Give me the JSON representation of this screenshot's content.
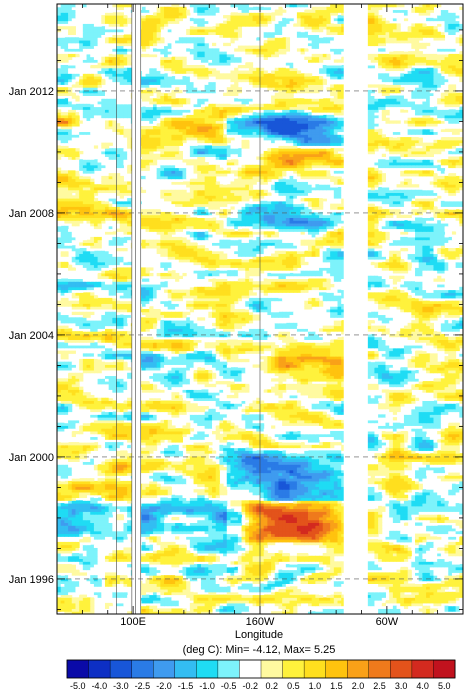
{
  "chart_data": {
    "type": "heatmap",
    "title": "",
    "xlabel": "Longitude",
    "ylabel": "",
    "units_label": "(deg C): Min= -4.12, Max= 5.25",
    "x_ticks": [
      {
        "label": "100E",
        "lon": 100
      },
      {
        "label": "160W",
        "lon": 200
      },
      {
        "label": "60W",
        "lon": 300
      }
    ],
    "y_ticks": [
      {
        "label": "Jan 2012",
        "year": 2012.0
      },
      {
        "label": "Jan 2008",
        "year": 2008.0
      },
      {
        "label": "Jan 2004",
        "year": 2004.0
      },
      {
        "label": "Jan 2000",
        "year": 2000.0
      },
      {
        "label": "Jan 1996",
        "year": 1996.0
      }
    ],
    "xlim": [
      40,
      360
    ],
    "ylim": [
      1994.85,
      2014.85
    ],
    "land_gaps_lon": [
      [
        99,
        106
      ],
      [
        266,
        285
      ]
    ],
    "colorbar": {
      "tick_labels": [
        "-5.0",
        "-4.0",
        "-3.0",
        "-2.5",
        "-2.0",
        "-1.5",
        "-1.0",
        "-0.5",
        "-0.2",
        "0.2",
        "0.5",
        "1.0",
        "1.5",
        "2.0",
        "2.5",
        "3.0",
        "4.0",
        "5.0"
      ],
      "colors": [
        "#0a0aa8",
        "#0d2fc4",
        "#1856d8",
        "#2a7be6",
        "#3f9bef",
        "#33bdf2",
        "#1fdcf4",
        "#7df3fb",
        "#ffffff",
        "#fffaa0",
        "#fff23c",
        "#ffdf1e",
        "#ffc30e",
        "#f9a118",
        "#ef7a1c",
        "#e3531b",
        "#d32a1f",
        "#c1121e"
      ]
    },
    "anomaly_features": [
      {
        "name": "1997-98 El Nino",
        "lon": [
          195,
          262
        ],
        "time": [
          1997.3,
          1998.5
        ],
        "value": 4.5
      },
      {
        "name": "1998-2000 La Nina",
        "lon": [
          175,
          262
        ],
        "time": [
          1998.6,
          2000.2
        ],
        "value": -2.5
      },
      {
        "name": "2002-03 El Nino",
        "lon": [
          195,
          262
        ],
        "time": [
          2002.6,
          2003.2
        ],
        "value": 1.8
      },
      {
        "name": "2009-10 El Nino",
        "lon": [
          195,
          262
        ],
        "time": [
          2009.6,
          2010.0
        ],
        "value": 2.3
      },
      {
        "name": "2010-11 La Nina",
        "lon": [
          180,
          262
        ],
        "time": [
          2010.3,
          2011.3
        ],
        "value": -2.5
      },
      {
        "name": "2007-08 La Nina",
        "lon": [
          175,
          262
        ],
        "time": [
          2007.5,
          2008.3
        ],
        "value": -1.5
      }
    ]
  }
}
